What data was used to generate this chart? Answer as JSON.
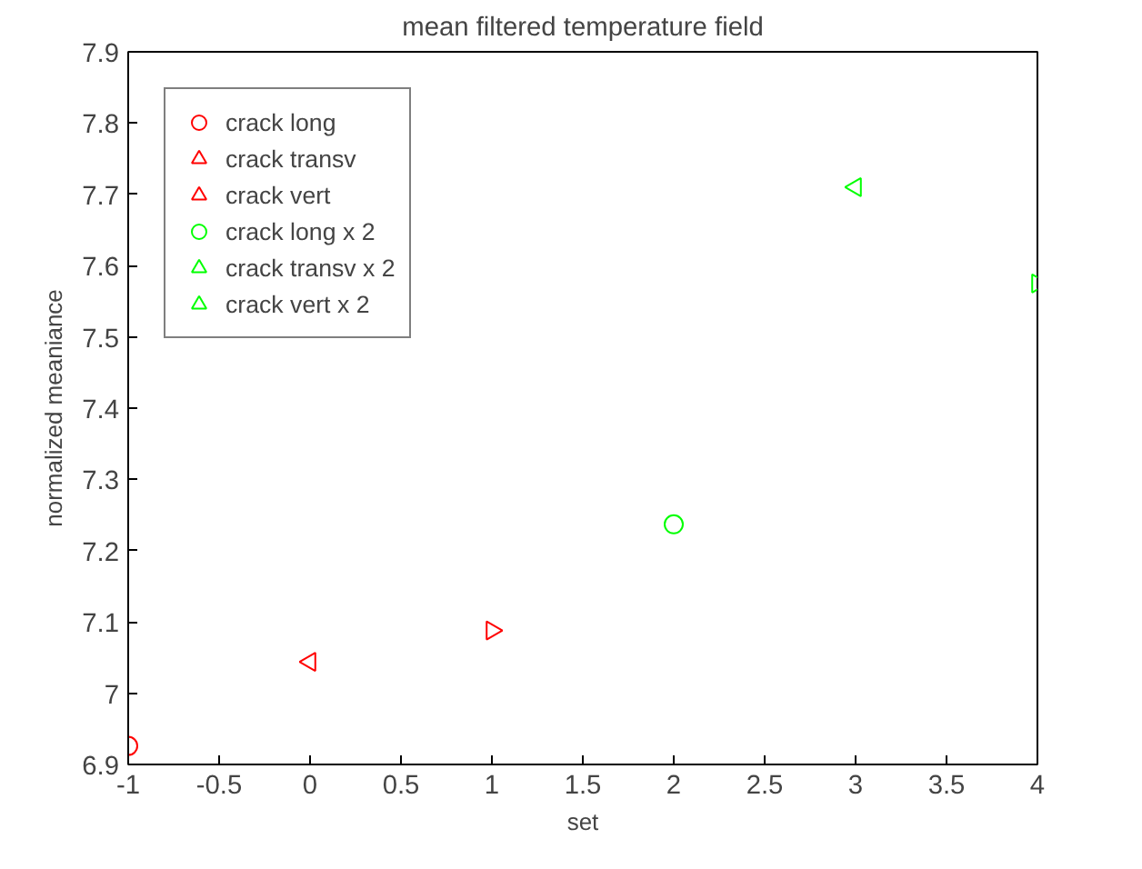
{
  "chart_data": {
    "type": "scatter",
    "title": "mean filtered temperature field",
    "xlabel": "set",
    "ylabel": "normalized meaniance",
    "xlim": [
      -1,
      4
    ],
    "xticks": [
      -1,
      {
        "value": -0.5,
        "label": "-0.5"
      },
      0,
      {
        "value": 0.5,
        "label": "0.5"
      },
      1,
      {
        "value": 1.5,
        "label": "1.5"
      },
      2,
      {
        "value": 2.5,
        "label": "2.5"
      },
      3,
      {
        "value": 3.5,
        "label": "3.5"
      },
      4
    ],
    "ylim": [
      6.9,
      7.9
    ],
    "yticks": [
      6.9,
      7,
      7.1,
      7.2,
      7.3,
      7.4,
      7.5,
      7.6,
      7.7,
      7.8,
      7.9
    ],
    "grid": false,
    "legend": "top left",
    "series": [
      {
        "name": "crack long",
        "color": "#ff0000",
        "marker": "circle",
        "x": [
          -1
        ],
        "values": [
          6.926
        ]
      },
      {
        "name": "crack transv",
        "color": "#ff0000",
        "marker": "triangle-left",
        "x": [
          0
        ],
        "values": [
          7.044
        ]
      },
      {
        "name": "crack vert",
        "color": "#ff0000",
        "marker": "triangle-right",
        "x": [
          1
        ],
        "values": [
          7.088
        ]
      },
      {
        "name": "crack long x 2",
        "color": "#00ff00",
        "marker": "circle",
        "x": [
          2
        ],
        "values": [
          7.237
        ]
      },
      {
        "name": "crack transv x 2",
        "color": "#00ff00",
        "marker": "triangle-left",
        "x": [
          3
        ],
        "values": [
          7.71
        ]
      },
      {
        "name": "crack vert x 2",
        "color": "#00ff00",
        "marker": "triangle-right",
        "x": [
          4
        ],
        "values": [
          7.575
        ]
      }
    ]
  }
}
